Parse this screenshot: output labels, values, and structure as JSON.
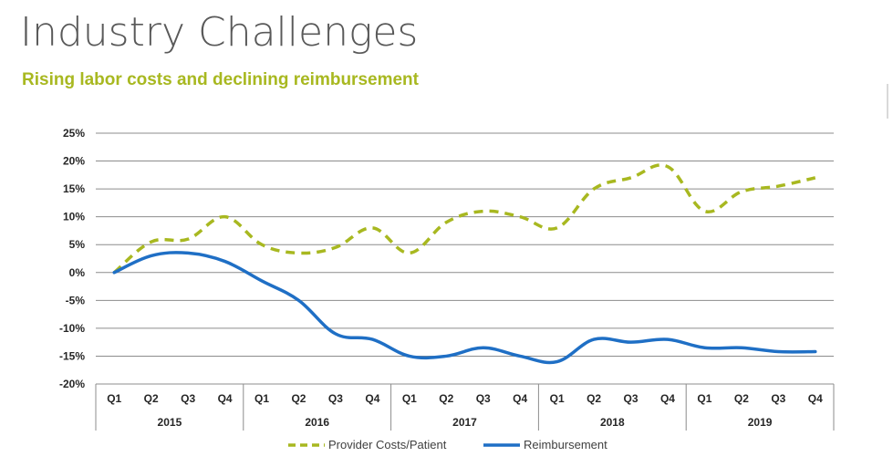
{
  "page": {
    "title": "Industry Challenges",
    "subtitle": "Rising labor costs and declining reimbursement"
  },
  "chart_data": {
    "type": "line",
    "title": "",
    "xlabel": "",
    "ylabel": "",
    "ylim": [
      -20,
      25
    ],
    "y_ticks": [
      25,
      20,
      15,
      10,
      5,
      0,
      -5,
      -10,
      -15,
      -20
    ],
    "y_tick_labels": [
      "25%",
      "20%",
      "15%",
      "10%",
      "5%",
      "0%",
      "-5%",
      "-10%",
      "-15%",
      "-20%"
    ],
    "grid": "horizontal",
    "legend": "bottom",
    "years": [
      "2015",
      "2016",
      "2017",
      "2018",
      "2019"
    ],
    "quarters": [
      "Q1",
      "Q2",
      "Q3",
      "Q4"
    ],
    "categories": [
      "2015 Q1",
      "2015 Q2",
      "2015 Q3",
      "2015 Q4",
      "2016 Q1",
      "2016 Q2",
      "2016 Q3",
      "2016 Q4",
      "2017 Q1",
      "2017 Q2",
      "2017 Q3",
      "2017 Q4",
      "2018 Q1",
      "2018 Q2",
      "2018 Q3",
      "2018 Q4",
      "2019 Q1",
      "2019 Q2",
      "2019 Q3",
      "2019 Q4"
    ],
    "series": [
      {
        "name": "Provider Costs/Patient",
        "color": "#a8b820",
        "style": "dashed",
        "values": [
          0,
          5.5,
          6,
          10,
          5,
          3.5,
          4.5,
          8,
          3.5,
          9,
          11,
          10,
          8,
          15,
          17,
          19,
          11,
          14.5,
          15.5,
          17
        ]
      },
      {
        "name": "Reimbursement",
        "color": "#1f6fc5",
        "style": "solid",
        "values": [
          0,
          3,
          3.5,
          2,
          -1.5,
          -5,
          -11,
          -12,
          -15,
          -15,
          -13.5,
          -15,
          -16,
          -12,
          -12.5,
          -12,
          -13.5,
          -13.5,
          -14.2,
          -14.2
        ]
      }
    ]
  }
}
